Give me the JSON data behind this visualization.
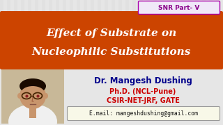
{
  "bg_color": "#e6e6e6",
  "stripe_color_light": "#d8d8d8",
  "stripe_color_dark": "#e6e6e6",
  "orange_banner_color": "#cc4400",
  "title_line1": "Effect of Substrate on",
  "title_line2": "Nucleophilic Substitutions",
  "title_color": "#ffffff",
  "snr_box_text": "SNR Part- V",
  "snr_box_bg": "#f0e8f8",
  "snr_box_border": "#aa00aa",
  "snr_text_color": "#880088",
  "name_text": "Dr. Mangesh Dushing",
  "name_color": "#00008b",
  "qual_line1": "Ph.D. (NCL-Pune)",
  "qual_line2": "CSIR-NET-JRF, GATE",
  "qual_color": "#cc0000",
  "email_text": "E.mail: mangeshdushing@gmail.com",
  "email_box_bg": "#f8f8e8",
  "email_box_border": "#999999",
  "email_color": "#111111",
  "photo_bg": "#c8b898",
  "skin_color": "#c8956c",
  "hair_color": "#1a0a00",
  "shirt_color": "#f0f0f0",
  "glasses_color": "#442200"
}
